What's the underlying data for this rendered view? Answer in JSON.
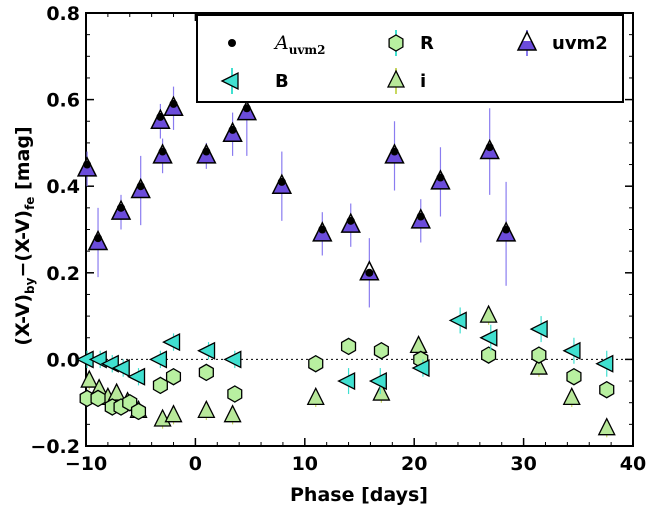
{
  "chart_data": {
    "type": "scatter",
    "xlabel": "Phase  [days]",
    "ylabel": "(X-V)",
    "ylabel_sub1": "by",
    "ylabel_mid": "−(X-V)",
    "ylabel_sub2": "fe",
    "ylabel_tail": " [mag]",
    "xlim": [
      -10,
      40
    ],
    "ylim": [
      -0.2,
      0.8
    ],
    "xticks": [
      -10,
      0,
      10,
      20,
      30,
      40
    ],
    "yticks": [
      -0.2,
      0.0,
      0.2,
      0.4,
      0.6,
      0.8
    ],
    "xtick_labels": [
      "−10",
      "0",
      "10",
      "20",
      "30",
      "40"
    ],
    "ytick_labels": [
      "−0.2",
      "0.0",
      "0.2",
      "0.4",
      "0.6",
      "0.8"
    ],
    "reference_line": {
      "y": 0.0,
      "style": "dotted"
    },
    "legend": {
      "location": "top-right",
      "entries": [
        {
          "series": "A_uvm2",
          "label": "A",
          "label_sub": "uvm2",
          "italic": true
        },
        {
          "series": "B",
          "label": "B"
        },
        {
          "series": "R",
          "label": "R"
        },
        {
          "series": "i",
          "label": "i"
        },
        {
          "series": "uvm2",
          "label": "uvm2"
        }
      ]
    },
    "series": [
      {
        "key": "uvm2",
        "marker": "triangle-up-half",
        "face_color": "#6b4cdb",
        "edge_color": "#000000",
        "error_color": "#8a7cf0",
        "points": [
          {
            "x": -9.9,
            "y": 0.44,
            "err": 0.04
          },
          {
            "x": -8.9,
            "y": 0.27,
            "err": 0.08
          },
          {
            "x": -6.8,
            "y": 0.34,
            "err": 0.04
          },
          {
            "x": -5.0,
            "y": 0.39,
            "err": 0.08
          },
          {
            "x": -3.2,
            "y": 0.55,
            "err": 0.04
          },
          {
            "x": -3.0,
            "y": 0.47,
            "err": 0.04
          },
          {
            "x": -2.0,
            "y": 0.58,
            "err": 0.05
          },
          {
            "x": 1.0,
            "y": 0.47,
            "err": 0.03
          },
          {
            "x": 3.4,
            "y": 0.52,
            "err": 0.05
          },
          {
            "x": 4.7,
            "y": 0.57,
            "err": 0.1
          },
          {
            "x": 7.9,
            "y": 0.4,
            "err": 0.08
          },
          {
            "x": 11.6,
            "y": 0.29,
            "err": 0.05
          },
          {
            "x": 14.2,
            "y": 0.31,
            "err": 0.05
          },
          {
            "x": 15.9,
            "y": 0.2,
            "err": 0.08
          },
          {
            "x": 18.2,
            "y": 0.47,
            "err": 0.08
          },
          {
            "x": 20.6,
            "y": 0.32,
            "err": 0.05
          },
          {
            "x": 22.4,
            "y": 0.41,
            "err": 0.08
          },
          {
            "x": 26.9,
            "y": 0.48,
            "err": 0.1
          },
          {
            "x": 28.4,
            "y": 0.29,
            "err": 0.12
          }
        ]
      },
      {
        "key": "A_uvm2",
        "marker": "dot",
        "face_color": "#000000",
        "points": [
          {
            "x": -9.9,
            "y": 0.45
          },
          {
            "x": -8.9,
            "y": 0.28
          },
          {
            "x": -6.8,
            "y": 0.35
          },
          {
            "x": -5.0,
            "y": 0.4
          },
          {
            "x": -3.2,
            "y": 0.56
          },
          {
            "x": -3.0,
            "y": 0.48
          },
          {
            "x": -2.0,
            "y": 0.59
          },
          {
            "x": 1.0,
            "y": 0.48
          },
          {
            "x": 3.4,
            "y": 0.53
          },
          {
            "x": 4.7,
            "y": 0.58
          },
          {
            "x": 7.9,
            "y": 0.41
          },
          {
            "x": 11.6,
            "y": 0.3
          },
          {
            "x": 14.2,
            "y": 0.32
          },
          {
            "x": 15.9,
            "y": 0.2
          },
          {
            "x": 18.2,
            "y": 0.48
          },
          {
            "x": 20.6,
            "y": 0.33
          },
          {
            "x": 22.4,
            "y": 0.42
          },
          {
            "x": 26.9,
            "y": 0.49
          },
          {
            "x": 28.4,
            "y": 0.3
          }
        ]
      },
      {
        "key": "B",
        "marker": "triangle-left",
        "face_color": "#40e0d0",
        "edge_color": "#000000",
        "error_color": "#40e0d0",
        "points": [
          {
            "x": -9.9,
            "y": 0.0,
            "err": 0.02
          },
          {
            "x": -8.7,
            "y": 0.0,
            "err": 0.02
          },
          {
            "x": -7.6,
            "y": -0.01,
            "err": 0.02
          },
          {
            "x": -6.6,
            "y": -0.02,
            "err": 0.02
          },
          {
            "x": -5.2,
            "y": -0.04,
            "err": 0.02
          },
          {
            "x": -3.2,
            "y": 0.0,
            "err": 0.02
          },
          {
            "x": -2.0,
            "y": 0.04,
            "err": 0.02
          },
          {
            "x": 1.2,
            "y": 0.02,
            "err": 0.02
          },
          {
            "x": 3.6,
            "y": 0.0,
            "err": 0.02
          },
          {
            "x": 14.0,
            "y": -0.05,
            "err": 0.03
          },
          {
            "x": 16.9,
            "y": -0.05,
            "err": 0.03
          },
          {
            "x": 20.8,
            "y": -0.02,
            "err": 0.02
          },
          {
            "x": 24.2,
            "y": 0.09,
            "err": 0.03
          },
          {
            "x": 27.0,
            "y": 0.05,
            "err": 0.03
          },
          {
            "x": 31.6,
            "y": 0.07,
            "err": 0.03
          },
          {
            "x": 34.6,
            "y": 0.02,
            "err": 0.03
          },
          {
            "x": 37.6,
            "y": -0.01,
            "err": 0.03
          }
        ]
      },
      {
        "key": "R",
        "marker": "hexagon",
        "face_color": "#b8f0a0",
        "edge_color": "#000000",
        "error_color": "#40e0d0",
        "points": [
          {
            "x": -9.9,
            "y": -0.09,
            "err": 0.02
          },
          {
            "x": -8.9,
            "y": -0.09,
            "err": 0.02
          },
          {
            "x": -7.6,
            "y": -0.11,
            "err": 0.02
          },
          {
            "x": -6.8,
            "y": -0.11,
            "err": 0.02
          },
          {
            "x": -6.0,
            "y": -0.1,
            "err": 0.02
          },
          {
            "x": -5.2,
            "y": -0.12,
            "err": 0.02
          },
          {
            "x": -3.2,
            "y": -0.06,
            "err": 0.02
          },
          {
            "x": -2.0,
            "y": -0.04,
            "err": 0.02
          },
          {
            "x": 1.0,
            "y": -0.03,
            "err": 0.02
          },
          {
            "x": 3.6,
            "y": -0.08,
            "err": 0.02
          },
          {
            "x": 11.0,
            "y": -0.01,
            "err": 0.02
          },
          {
            "x": 14.0,
            "y": 0.03,
            "err": 0.02
          },
          {
            "x": 17.0,
            "y": 0.02,
            "err": 0.02
          },
          {
            "x": 20.6,
            "y": 0.0,
            "err": 0.02
          },
          {
            "x": 26.8,
            "y": 0.01,
            "err": 0.02
          },
          {
            "x": 31.4,
            "y": 0.01,
            "err": 0.02
          },
          {
            "x": 34.6,
            "y": -0.04,
            "err": 0.02
          },
          {
            "x": 37.6,
            "y": -0.07,
            "err": 0.02
          }
        ]
      },
      {
        "key": "i",
        "marker": "triangle-up",
        "face_color": "#b8e89a",
        "edge_color": "#000000",
        "error_color": "#c8d860",
        "points": [
          {
            "x": -9.7,
            "y": -0.05,
            "err": 0.02
          },
          {
            "x": -8.8,
            "y": -0.07,
            "err": 0.02
          },
          {
            "x": -8.0,
            "y": -0.09,
            "err": 0.02
          },
          {
            "x": -7.2,
            "y": -0.08,
            "err": 0.02
          },
          {
            "x": -6.2,
            "y": -0.1,
            "err": 0.02
          },
          {
            "x": -5.2,
            "y": -0.12,
            "err": 0.02
          },
          {
            "x": -3.0,
            "y": -0.14,
            "err": 0.02
          },
          {
            "x": -2.0,
            "y": -0.13,
            "err": 0.02
          },
          {
            "x": 1.0,
            "y": -0.12,
            "err": 0.02
          },
          {
            "x": 3.4,
            "y": -0.13,
            "err": 0.02
          },
          {
            "x": 11.0,
            "y": -0.09,
            "err": 0.02
          },
          {
            "x": 17.0,
            "y": -0.08,
            "err": 0.02
          },
          {
            "x": 20.4,
            "y": 0.03,
            "err": 0.02
          },
          {
            "x": 26.8,
            "y": 0.1,
            "err": 0.02
          },
          {
            "x": 31.4,
            "y": -0.02,
            "err": 0.02
          },
          {
            "x": 34.4,
            "y": -0.09,
            "err": 0.02
          },
          {
            "x": 37.6,
            "y": -0.16,
            "err": 0.02
          }
        ]
      }
    ]
  }
}
